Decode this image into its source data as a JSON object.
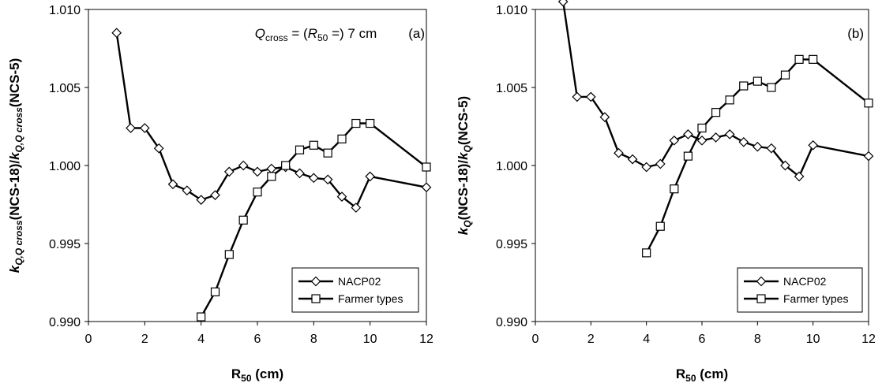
{
  "chart_data": [
    {
      "type": "line",
      "panel_label": "(a)",
      "annotation": {
        "Q": "Q",
        "cross_sub": "cross",
        "eq": " = (",
        "R": "R",
        "r_sub": "50",
        "tail": " =) 7 cm"
      },
      "xlabel": {
        "main": "R",
        "sub": "50",
        "unit": " (cm)"
      },
      "ylabel": {
        "k1": "k",
        "s1": "Q,Q cross",
        "mid": "(NCS-18)/",
        "k2": "k",
        "s2": "Q,Q cross",
        "tail": "(NCS-5)"
      },
      "xlim": [
        0,
        12
      ],
      "ylim": [
        0.99,
        1.01
      ],
      "xticks": [
        "0",
        "2",
        "4",
        "6",
        "8",
        "10",
        "12"
      ],
      "yticks": [
        "0.990",
        "0.995",
        "1.000",
        "1.005",
        "1.010"
      ],
      "legend_position": "bottom-right",
      "series": [
        {
          "name": "NACP02",
          "marker": "diamond",
          "x": [
            1,
            1.5,
            2,
            2.5,
            3,
            3.5,
            4,
            4.5,
            5,
            5.5,
            6,
            6.5,
            7,
            7.5,
            8,
            8.5,
            9,
            9.5,
            10,
            12
          ],
          "y": [
            1.0085,
            1.0024,
            1.0024,
            1.0011,
            0.9988,
            0.9984,
            0.9978,
            0.9981,
            0.9996,
            1.0,
            0.9996,
            0.9998,
            0.9999,
            0.9995,
            0.9992,
            0.9991,
            0.998,
            0.9973,
            0.9993,
            0.9986
          ]
        },
        {
          "name": "Farmer types",
          "marker": "square",
          "x": [
            4,
            4.5,
            5,
            5.5,
            6,
            6.5,
            7,
            7.5,
            8,
            8.5,
            9,
            9.5,
            10,
            12
          ],
          "y": [
            0.9903,
            0.9919,
            0.9943,
            0.9965,
            0.9983,
            0.9993,
            1.0,
            1.001,
            1.0013,
            1.0008,
            1.0017,
            1.0027,
            1.0027,
            0.9999
          ]
        }
      ]
    },
    {
      "type": "line",
      "panel_label": "(b)",
      "xlabel": {
        "main": "R",
        "sub": "50",
        "unit": " (cm)"
      },
      "ylabel": {
        "k1": "k",
        "s1": "Q",
        "mid": "(NCS-18)/",
        "k2": "k",
        "s2": "Q",
        "tail": "(NCS-5)"
      },
      "xlim": [
        0,
        12
      ],
      "ylim": [
        0.99,
        1.01
      ],
      "xticks": [
        "0",
        "2",
        "4",
        "6",
        "8",
        "10",
        "12"
      ],
      "yticks": [
        "0.990",
        "0.995",
        "1.000",
        "1.005",
        "1.010"
      ],
      "legend_position": "bottom-right",
      "series": [
        {
          "name": "NACP02",
          "marker": "diamond",
          "x": [
            1,
            1.5,
            2,
            2.5,
            3,
            3.5,
            4,
            4.5,
            5,
            5.5,
            6,
            6.5,
            7,
            7.5,
            8,
            8.5,
            9,
            9.5,
            10,
            12
          ],
          "y": [
            1.0105,
            1.0044,
            1.0044,
            1.0031,
            1.0008,
            1.0004,
            0.9999,
            1.0001,
            1.0016,
            1.002,
            1.0016,
            1.0018,
            1.002,
            1.0015,
            1.0012,
            1.0011,
            1.0,
            0.9993,
            1.0013,
            1.0006
          ]
        },
        {
          "name": "Farmer types",
          "marker": "square",
          "x": [
            4,
            4.5,
            5,
            5.5,
            6,
            6.5,
            7,
            7.5,
            8,
            8.5,
            9,
            9.5,
            10,
            12
          ],
          "y": [
            0.9944,
            0.9961,
            0.9985,
            1.0006,
            1.0024,
            1.0034,
            1.0042,
            1.0051,
            1.0054,
            1.005,
            1.0058,
            1.0068,
            1.0068,
            1.004
          ]
        }
      ]
    }
  ]
}
